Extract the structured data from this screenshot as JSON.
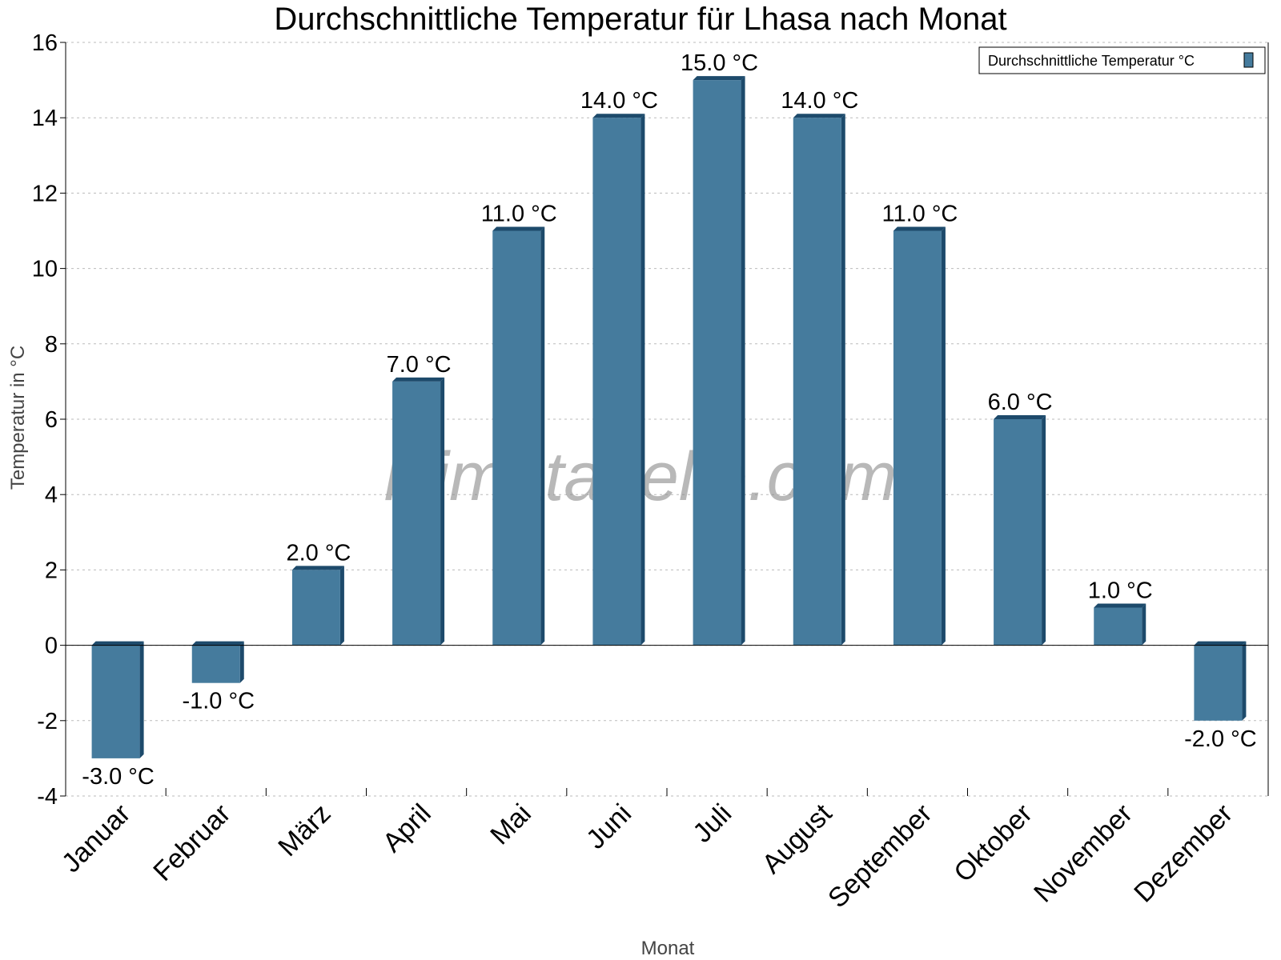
{
  "chart_data": {
    "type": "bar",
    "title": "Durchschnittliche Temperatur für Lhasa nach Monat",
    "xlabel": "Monat",
    "ylabel": "Temperatur in °C",
    "categories": [
      "Januar",
      "Februar",
      "März",
      "April",
      "Mai",
      "Juni",
      "Juli",
      "August",
      "September",
      "Oktober",
      "November",
      "Dezember"
    ],
    "series": [
      {
        "name": "Durchschnittliche Temperatur °C",
        "values": [
          -3,
          -1,
          2,
          7,
          11,
          14,
          15,
          14,
          11,
          6,
          1,
          -2
        ]
      }
    ],
    "data_labels": [
      "-3.0 °C",
      "-1.0 °C",
      "2.0 °C",
      "7.0 °C",
      "11.0 °C",
      "14.0 °C",
      "15.0 °C",
      "14.0 °C",
      "11.0 °C",
      "6.0 °C",
      "1.0 °C",
      "-2.0 °C"
    ],
    "ylim": [
      -4,
      16
    ],
    "yticks": [
      -4,
      -2,
      0,
      2,
      4,
      6,
      8,
      10,
      12,
      14,
      16
    ],
    "grid": true,
    "legend_position": "top-right",
    "watermark": "klimatabelle.com",
    "colors": {
      "bar": "#457b9d",
      "bar_side": "#1d4a6b"
    }
  }
}
